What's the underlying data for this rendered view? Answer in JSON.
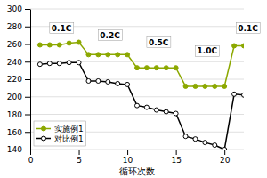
{
  "chart_data": {
    "type": "line",
    "xlabel": "循环次数",
    "xlim": [
      0,
      22
    ],
    "ylim": [
      140,
      300
    ],
    "xticks": [
      0,
      5,
      10,
      15,
      20
    ],
    "yticks": [
      140,
      160,
      180,
      200,
      220,
      240,
      260,
      280,
      300
    ],
    "grid": "y",
    "legend": "lower left",
    "series": [
      {
        "name": "实施例1",
        "color": "#8ca800",
        "marker": "circle",
        "x": [
          1,
          2,
          3,
          4,
          5,
          6,
          7,
          8,
          9,
          10,
          11,
          12,
          13,
          14,
          15,
          16,
          17,
          18,
          19,
          20,
          21,
          22
        ],
        "values": [
          259,
          259,
          259,
          261,
          262,
          248,
          248,
          248,
          248,
          248,
          233,
          233,
          233,
          233,
          233,
          212,
          212,
          212,
          212,
          212,
          258,
          258
        ]
      },
      {
        "name": "对比例1",
        "color": "#000000",
        "marker": "open-circle",
        "x": [
          1,
          2,
          3,
          4,
          5,
          6,
          7,
          8,
          9,
          10,
          11,
          12,
          13,
          14,
          15,
          16,
          17,
          18,
          19,
          20,
          21,
          22
        ],
        "values": [
          237,
          238,
          238,
          239,
          239,
          218,
          218,
          217,
          215,
          214,
          190,
          188,
          185,
          183,
          181,
          155,
          152,
          148,
          145,
          140,
          203,
          202
        ]
      }
    ],
    "annotations": [
      {
        "x": 2.0,
        "y": 278,
        "text": "0.1C"
      },
      {
        "x": 7.0,
        "y": 270,
        "text": "0.2C"
      },
      {
        "x": 12.0,
        "y": 262,
        "text": "0.5C"
      },
      {
        "x": 17.0,
        "y": 252,
        "text": "1.0C"
      },
      {
        "x": 21.2,
        "y": 278,
        "text": "0.1C"
      }
    ]
  }
}
